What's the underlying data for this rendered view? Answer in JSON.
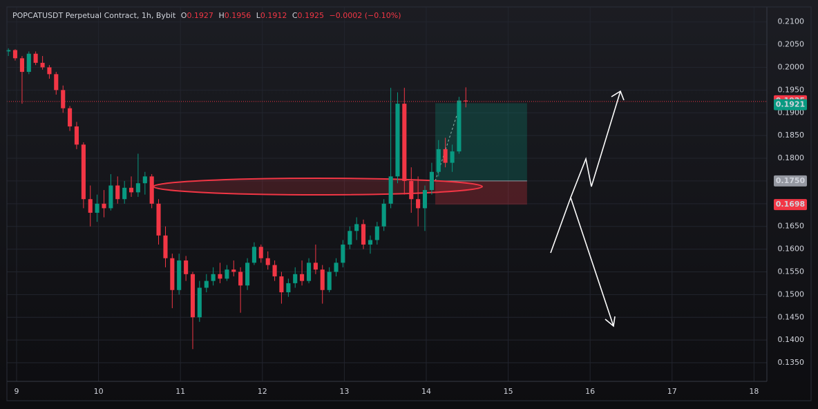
{
  "chart_data": {
    "type": "candlestick",
    "title": "POPCATUSDT Perpetual Contract, 1h, Bybit",
    "ohlc_letters": [
      "O",
      "H",
      "L",
      "C"
    ],
    "change": "−0.0002 (−0.10%)",
    "up_color": "#089981",
    "down_color": "#f23645",
    "grid": true,
    "x": [
      8.9,
      8.983,
      9.067,
      9.15,
      9.233,
      9.317,
      9.4,
      9.483,
      9.567,
      9.65,
      9.733,
      9.817,
      9.9,
      9.983,
      10.067,
      10.15,
      10.233,
      10.317,
      10.4,
      10.483,
      10.567,
      10.65,
      10.733,
      10.817,
      10.9,
      10.983,
      11.067,
      11.15,
      11.233,
      11.317,
      11.4,
      11.483,
      11.567,
      11.65,
      11.733,
      11.817,
      11.9,
      11.983,
      12.067,
      12.15,
      12.233,
      12.317,
      12.4,
      12.483,
      12.567,
      12.65,
      12.733,
      12.817,
      12.9,
      12.983,
      13.067,
      13.15,
      13.233,
      13.317,
      13.4,
      13.483,
      13.567,
      13.65,
      13.733,
      13.817,
      13.9,
      13.983,
      14.067,
      14.15,
      14.233,
      14.317,
      14.4,
      14.483
    ],
    "open": [
      0.2035,
      0.2038,
      0.202,
      0.199,
      0.203,
      0.201,
      0.2,
      0.1985,
      0.195,
      0.191,
      0.187,
      0.183,
      0.171,
      0.168,
      0.17,
      0.169,
      0.174,
      0.171,
      0.1735,
      0.1725,
      0.1745,
      0.176,
      0.17,
      0.163,
      0.158,
      0.151,
      0.1575,
      0.1545,
      0.145,
      0.1515,
      0.153,
      0.1545,
      0.1535,
      0.1555,
      0.155,
      0.152,
      0.157,
      0.1605,
      0.158,
      0.1565,
      0.154,
      0.1505,
      0.1525,
      0.1545,
      0.153,
      0.157,
      0.1555,
      0.151,
      0.155,
      0.157,
      0.161,
      0.164,
      0.1655,
      0.161,
      0.162,
      0.165,
      0.17,
      0.176,
      0.192,
      0.175,
      0.171,
      0.169,
      0.173,
      0.177,
      0.182,
      0.179,
      0.1815,
      0.1927
    ],
    "high": [
      0.2042,
      0.204,
      0.2025,
      0.2035,
      0.2035,
      0.2025,
      0.2005,
      0.199,
      0.196,
      0.1915,
      0.188,
      0.1835,
      0.174,
      0.172,
      0.173,
      0.1765,
      0.176,
      0.175,
      0.176,
      0.181,
      0.177,
      0.1765,
      0.171,
      0.165,
      0.159,
      0.159,
      0.1585,
      0.155,
      0.153,
      0.1545,
      0.156,
      0.157,
      0.1565,
      0.1575,
      0.156,
      0.158,
      0.1615,
      0.161,
      0.1595,
      0.1575,
      0.155,
      0.1535,
      0.156,
      0.1575,
      0.158,
      0.161,
      0.1565,
      0.156,
      0.158,
      0.162,
      0.165,
      0.167,
      0.1665,
      0.163,
      0.166,
      0.171,
      0.1955,
      0.1945,
      0.1955,
      0.178,
      0.176,
      0.174,
      0.179,
      0.184,
      0.1845,
      0.183,
      0.1935,
      0.1956
    ],
    "low": [
      0.2025,
      0.2015,
      0.192,
      0.1985,
      0.2005,
      0.1995,
      0.1975,
      0.194,
      0.19,
      0.186,
      0.182,
      0.169,
      0.165,
      0.166,
      0.167,
      0.1685,
      0.17,
      0.17,
      0.1715,
      0.1715,
      0.172,
      0.169,
      0.161,
      0.156,
      0.147,
      0.15,
      0.153,
      0.138,
      0.144,
      0.1505,
      0.152,
      0.1525,
      0.153,
      0.154,
      0.146,
      0.151,
      0.1565,
      0.157,
      0.1555,
      0.153,
      0.148,
      0.1495,
      0.1515,
      0.152,
      0.1525,
      0.1545,
      0.148,
      0.1505,
      0.154,
      0.156,
      0.16,
      0.162,
      0.16,
      0.159,
      0.161,
      0.164,
      0.169,
      0.1745,
      0.172,
      0.168,
      0.165,
      0.164,
      0.172,
      0.176,
      0.178,
      0.177,
      0.181,
      0.1912
    ],
    "close": [
      0.2038,
      0.202,
      0.199,
      0.203,
      0.201,
      0.2,
      0.1985,
      0.195,
      0.191,
      0.187,
      0.183,
      0.171,
      0.168,
      0.17,
      0.169,
      0.174,
      0.171,
      0.1735,
      0.1725,
      0.1745,
      0.176,
      0.17,
      0.163,
      0.158,
      0.151,
      0.1575,
      0.1545,
      0.145,
      0.1515,
      0.153,
      0.1545,
      0.1535,
      0.1555,
      0.155,
      0.152,
      0.157,
      0.1605,
      0.158,
      0.1565,
      0.154,
      0.1505,
      0.1525,
      0.1545,
      0.153,
      0.157,
      0.1555,
      0.151,
      0.155,
      0.157,
      0.161,
      0.164,
      0.1655,
      0.161,
      0.162,
      0.165,
      0.17,
      0.176,
      0.192,
      0.175,
      0.171,
      0.169,
      0.173,
      0.177,
      0.182,
      0.179,
      0.1815,
      0.1927,
      0.1925
    ],
    "xlim": [
      8.882,
      18.157
    ],
    "xticks": [
      9,
      10,
      11,
      12,
      13,
      14,
      15,
      16,
      17,
      18
    ],
    "ylim": [
      0.1309,
      0.2133
    ],
    "yticks": [
      {
        "value": 0.135,
        "label": "0.1350"
      },
      {
        "value": 0.14,
        "label": "0.1400"
      },
      {
        "value": 0.145,
        "label": "0.1450"
      },
      {
        "value": 0.15,
        "label": "0.1500"
      },
      {
        "value": 0.155,
        "label": "0.1550"
      },
      {
        "value": 0.16,
        "label": "0.1600"
      },
      {
        "value": 0.165,
        "label": "0.1650"
      },
      {
        "value": 0.17,
        "label": "0.1700"
      },
      {
        "value": 0.175,
        "label": "0.1750"
      },
      {
        "value": 0.18,
        "label": "0.1800"
      },
      {
        "value": 0.185,
        "label": "0.1850"
      },
      {
        "value": 0.19,
        "label": "0.1900"
      },
      {
        "value": 0.195,
        "label": "0.1950"
      },
      {
        "value": 0.2,
        "label": "0.2000"
      },
      {
        "value": 0.205,
        "label": "0.2050"
      },
      {
        "value": 0.21,
        "label": "0.2100"
      }
    ],
    "position": {
      "entry": {
        "value": 0.175,
        "label": "0.1750"
      },
      "target": 0.1921,
      "stop": 0.1698,
      "x": [
        14.11,
        15.23
      ]
    }
  }
}
